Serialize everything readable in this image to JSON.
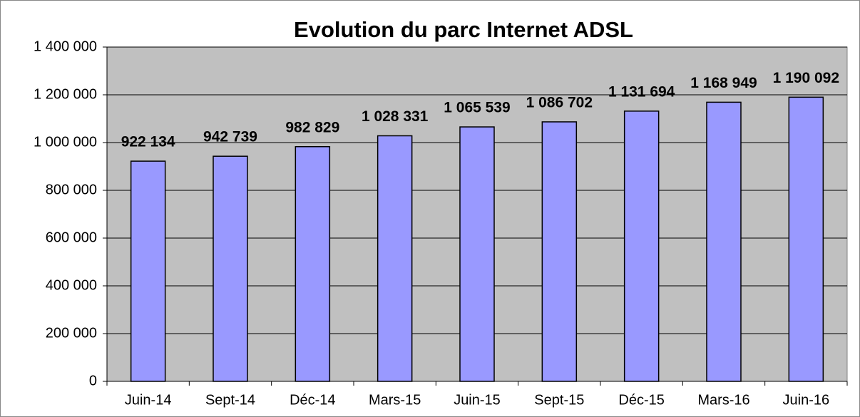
{
  "chart_data": {
    "type": "bar",
    "title": "Evolution du parc Internet ADSL",
    "categories": [
      "Juin-14",
      "Sept-14",
      "Déc-14",
      "Mars-15",
      "Juin-15",
      "Sept-15",
      "Déc-15",
      "Mars-16",
      "Juin-16"
    ],
    "values": [
      922134,
      942739,
      982829,
      1028331,
      1065539,
      1086702,
      1131694,
      1168949,
      1190092
    ],
    "value_labels": [
      "922 134",
      "942 739",
      "982 829",
      "1 028 331",
      "1 065 539",
      "1 086 702",
      "1 131 694",
      "1 168 949",
      "1 190 092"
    ],
    "color": "#9999ff",
    "background": "#c0c0c0",
    "ylim": [
      0,
      1400000
    ],
    "yticks": [
      0,
      {
        "value": 200000,
        "label": "200 000"
      },
      {
        "value": 400000,
        "label": "400 000"
      },
      {
        "value": 600000,
        "label": "600 000"
      },
      {
        "value": 800000,
        "label": "800 000"
      },
      {
        "value": 1000000,
        "label": "1 000 000"
      },
      {
        "value": 1200000,
        "label": "1 200 000"
      },
      {
        "value": 1400000,
        "label": "1 400 000"
      }
    ],
    "grid": true
  }
}
